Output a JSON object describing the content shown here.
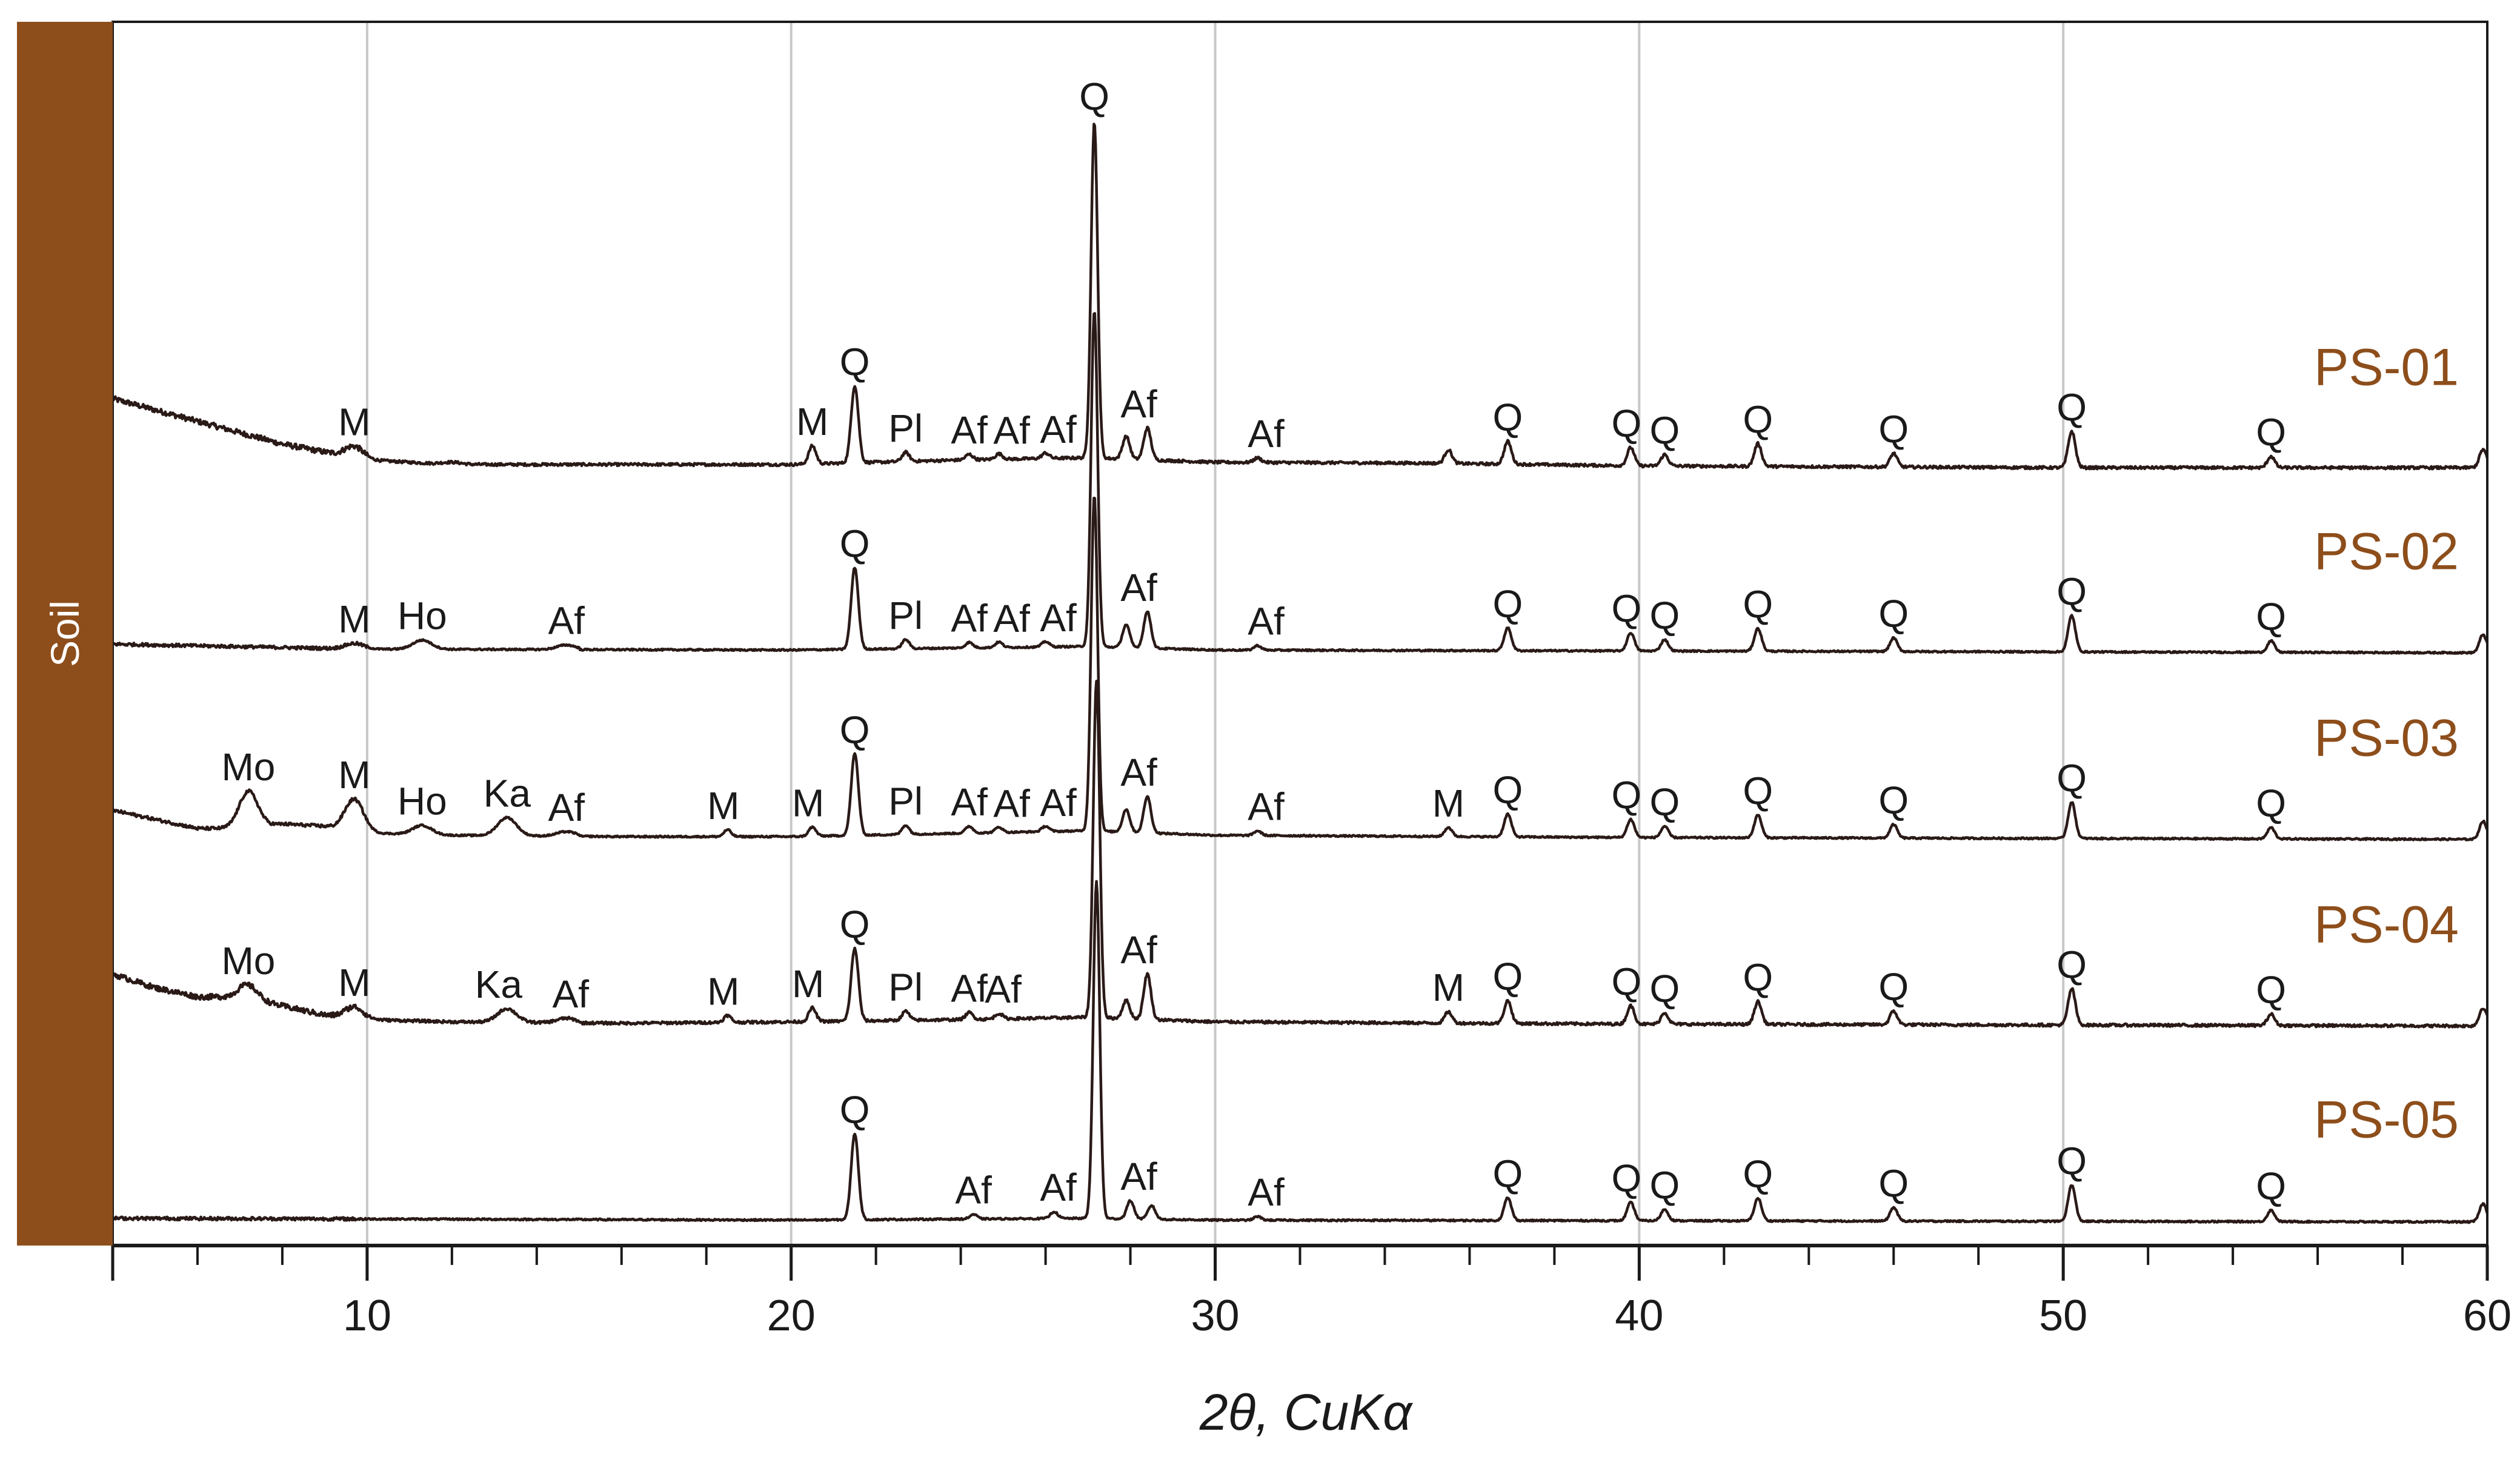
{
  "side_label": "Soil",
  "colors": {
    "side_band": "#8d4e1b",
    "sample_label": "#8d4e1b",
    "trace": "#2a1a17",
    "grid": "#c8c8c8",
    "axis": "#1a1a1a",
    "peak_label": "#1a1a1a"
  },
  "chart_data": {
    "type": "line",
    "title": "",
    "xlabel": "2θ, CuKα",
    "ylabel": "",
    "xlim": [
      4,
      60
    ],
    "x_ticks": [
      10,
      20,
      30,
      40,
      50,
      60
    ],
    "x_minor_step": 2,
    "grid": "vertical lines at major ticks",
    "y_scale": "stacked patterns, relative intensity (no axis)",
    "series": [
      {
        "name": "PS-01",
        "baseline": 0.0,
        "background": [
          [
            4,
            0.16
          ],
          [
            6,
            0.11
          ],
          [
            8,
            0.06
          ],
          [
            10,
            0.025
          ],
          [
            12,
            0.015
          ],
          [
            20,
            0.015
          ],
          [
            24,
            0.025
          ],
          [
            27,
            0.03
          ],
          [
            30,
            0.02
          ],
          [
            35,
            0.018
          ],
          [
            40,
            0.012
          ],
          [
            50,
            0.008
          ],
          [
            60,
            0.008
          ]
        ],
        "peaks": [
          [
            9.7,
            0.025
          ],
          [
            12.0,
            0.005
          ],
          [
            20.5,
            0.04
          ],
          [
            21.5,
            0.17
          ],
          [
            22.7,
            0.02
          ],
          [
            24.2,
            0.012
          ],
          [
            24.9,
            0.012
          ],
          [
            26.0,
            0.012
          ],
          [
            27.15,
            0.74
          ],
          [
            27.9,
            0.05
          ],
          [
            28.4,
            0.07
          ],
          [
            31.0,
            0.01
          ],
          [
            35.5,
            0.03
          ],
          [
            36.9,
            0.05
          ],
          [
            39.8,
            0.04
          ],
          [
            40.6,
            0.025
          ],
          [
            42.8,
            0.05
          ],
          [
            46.0,
            0.03
          ],
          [
            50.2,
            0.08
          ],
          [
            54.9,
            0.025
          ],
          [
            59.9,
            0.04
          ]
        ],
        "labels": [
          {
            "text": "M",
            "x": 9.7
          },
          {
            "text": "M",
            "x": 20.5
          },
          {
            "text": "Q",
            "x": 21.5
          },
          {
            "text": "Pl",
            "x": 22.7
          },
          {
            "text": "Af",
            "x": 24.2
          },
          {
            "text": "Af",
            "x": 25.2
          },
          {
            "text": "Af",
            "x": 26.3
          },
          {
            "text": "Q",
            "x": 27.15
          },
          {
            "text": "Af",
            "x": 28.2
          },
          {
            "text": "Af",
            "x": 31.2
          },
          {
            "text": "Q",
            "x": 36.9
          },
          {
            "text": "Q",
            "x": 39.7
          },
          {
            "text": "Q",
            "x": 40.6
          },
          {
            "text": "Q",
            "x": 42.8
          },
          {
            "text": "Q",
            "x": 46.0
          },
          {
            "text": "Q",
            "x": 50.2
          },
          {
            "text": "Q",
            "x": 54.9
          }
        ]
      },
      {
        "name": "PS-02",
        "baseline": 0.0,
        "background": [
          [
            4,
            0.025
          ],
          [
            10,
            0.014
          ],
          [
            20,
            0.012
          ],
          [
            27,
            0.02
          ],
          [
            30,
            0.012
          ],
          [
            40,
            0.01
          ],
          [
            60,
            0.006
          ]
        ],
        "peaks": [
          [
            9.7,
            0.012
          ],
          [
            11.3,
            0.02
          ],
          [
            14.7,
            0.01
          ],
          [
            21.5,
            0.18
          ],
          [
            22.7,
            0.02
          ],
          [
            24.2,
            0.012
          ],
          [
            24.9,
            0.012
          ],
          [
            26.0,
            0.012
          ],
          [
            27.15,
            0.74
          ],
          [
            27.9,
            0.05
          ],
          [
            28.4,
            0.08
          ],
          [
            31.0,
            0.01
          ],
          [
            36.9,
            0.05
          ],
          [
            39.8,
            0.04
          ],
          [
            40.6,
            0.025
          ],
          [
            42.8,
            0.05
          ],
          [
            46.0,
            0.03
          ],
          [
            50.2,
            0.08
          ],
          [
            54.9,
            0.025
          ],
          [
            59.9,
            0.04
          ]
        ],
        "labels": [
          {
            "text": "M",
            "x": 9.7
          },
          {
            "text": "Ho",
            "x": 11.3
          },
          {
            "text": "Af",
            "x": 14.7
          },
          {
            "text": "Q",
            "x": 21.5
          },
          {
            "text": "Pl",
            "x": 22.7
          },
          {
            "text": "Af",
            "x": 24.2
          },
          {
            "text": "Af",
            "x": 25.2
          },
          {
            "text": "Af",
            "x": 26.3
          },
          {
            "text": "Af",
            "x": 28.2
          },
          {
            "text": "Af",
            "x": 31.2
          },
          {
            "text": "Q",
            "x": 36.9
          },
          {
            "text": "Q",
            "x": 39.7
          },
          {
            "text": "Q",
            "x": 40.6
          },
          {
            "text": "Q",
            "x": 42.8
          },
          {
            "text": "Q",
            "x": 46.0
          },
          {
            "text": "Q",
            "x": 50.2
          },
          {
            "text": "Q",
            "x": 54.9
          }
        ]
      },
      {
        "name": "PS-03",
        "baseline": 0.0,
        "background": [
          [
            4,
            0.07
          ],
          [
            5,
            0.05
          ],
          [
            6,
            0.03
          ],
          [
            7,
            0.03
          ],
          [
            8,
            0.04
          ],
          [
            9,
            0.035
          ],
          [
            10,
            0.02
          ],
          [
            12,
            0.015
          ],
          [
            16,
            0.012
          ],
          [
            20,
            0.012
          ],
          [
            27,
            0.025
          ],
          [
            30,
            0.015
          ],
          [
            40,
            0.01
          ],
          [
            60,
            0.006
          ]
        ],
        "peaks": [
          [
            7.2,
            0.08
          ],
          [
            9.7,
            0.07
          ],
          [
            11.3,
            0.02
          ],
          [
            13.3,
            0.04
          ],
          [
            14.7,
            0.01
          ],
          [
            18.5,
            0.015
          ],
          [
            20.5,
            0.02
          ],
          [
            21.5,
            0.18
          ],
          [
            22.7,
            0.02
          ],
          [
            24.2,
            0.015
          ],
          [
            24.9,
            0.012
          ],
          [
            26.0,
            0.012
          ],
          [
            27.15,
            0.74
          ],
          [
            27.9,
            0.05
          ],
          [
            28.4,
            0.08
          ],
          [
            31.0,
            0.01
          ],
          [
            35.5,
            0.02
          ],
          [
            36.9,
            0.05
          ],
          [
            39.8,
            0.04
          ],
          [
            40.6,
            0.025
          ],
          [
            42.8,
            0.05
          ],
          [
            46.0,
            0.03
          ],
          [
            50.2,
            0.08
          ],
          [
            54.9,
            0.025
          ],
          [
            59.9,
            0.04
          ]
        ],
        "labels": [
          {
            "text": "Mo",
            "x": 7.2
          },
          {
            "text": "M",
            "x": 9.7
          },
          {
            "text": "Ho",
            "x": 11.3
          },
          {
            "text": "Ka",
            "x": 13.3
          },
          {
            "text": "Af",
            "x": 14.7
          },
          {
            "text": "M",
            "x": 18.4
          },
          {
            "text": "M",
            "x": 20.4
          },
          {
            "text": "Q",
            "x": 21.5
          },
          {
            "text": "Pl",
            "x": 22.7
          },
          {
            "text": "Af",
            "x": 24.2
          },
          {
            "text": "Af",
            "x": 25.2
          },
          {
            "text": "Af",
            "x": 26.3
          },
          {
            "text": "Af",
            "x": 28.2
          },
          {
            "text": "Af",
            "x": 31.2
          },
          {
            "text": "M",
            "x": 35.5
          },
          {
            "text": "Q",
            "x": 36.9
          },
          {
            "text": "Q",
            "x": 39.7
          },
          {
            "text": "Q",
            "x": 40.6
          },
          {
            "text": "Q",
            "x": 42.8
          },
          {
            "text": "Q",
            "x": 46.0
          },
          {
            "text": "Q",
            "x": 50.2
          },
          {
            "text": "Q",
            "x": 54.9
          }
        ]
      },
      {
        "name": "PS-04",
        "baseline": 0.0,
        "background": [
          [
            4,
            0.12
          ],
          [
            5,
            0.09
          ],
          [
            6,
            0.07
          ],
          [
            7,
            0.07
          ],
          [
            8,
            0.05
          ],
          [
            9,
            0.03
          ],
          [
            10,
            0.02
          ],
          [
            12,
            0.015
          ],
          [
            16,
            0.012
          ],
          [
            20,
            0.015
          ],
          [
            24,
            0.02
          ],
          [
            27,
            0.025
          ],
          [
            30,
            0.015
          ],
          [
            40,
            0.01
          ],
          [
            60,
            0.006
          ]
        ],
        "peaks": [
          [
            7.2,
            0.03
          ],
          [
            9.7,
            0.025
          ],
          [
            13.3,
            0.03
          ],
          [
            14.7,
            0.01
          ],
          [
            18.5,
            0.015
          ],
          [
            20.5,
            0.03
          ],
          [
            21.5,
            0.16
          ],
          [
            22.7,
            0.02
          ],
          [
            24.2,
            0.015
          ],
          [
            24.9,
            0.012
          ],
          [
            27.2,
            0.74
          ],
          [
            27.9,
            0.04
          ],
          [
            28.4,
            0.1
          ],
          [
            35.5,
            0.025
          ],
          [
            36.9,
            0.05
          ],
          [
            39.8,
            0.04
          ],
          [
            40.6,
            0.025
          ],
          [
            42.8,
            0.05
          ],
          [
            46.0,
            0.03
          ],
          [
            50.2,
            0.08
          ],
          [
            54.9,
            0.025
          ],
          [
            59.9,
            0.04
          ]
        ],
        "labels": [
          {
            "text": "Mo",
            "x": 7.2
          },
          {
            "text": "M",
            "x": 9.7
          },
          {
            "text": "Ka",
            "x": 13.1
          },
          {
            "text": "Af",
            "x": 14.8
          },
          {
            "text": "M",
            "x": 18.4
          },
          {
            "text": "M",
            "x": 20.4
          },
          {
            "text": "Q",
            "x": 21.5
          },
          {
            "text": "Pl",
            "x": 22.7
          },
          {
            "text": "Af",
            "x": 24.2
          },
          {
            "text": "Af",
            "x": 25.0
          },
          {
            "text": "Af",
            "x": 28.2
          },
          {
            "text": "M",
            "x": 35.5
          },
          {
            "text": "Q",
            "x": 36.9
          },
          {
            "text": "Q",
            "x": 39.7
          },
          {
            "text": "Q",
            "x": 40.6
          },
          {
            "text": "Q",
            "x": 42.8
          },
          {
            "text": "Q",
            "x": 46.0
          },
          {
            "text": "Q",
            "x": 50.2
          },
          {
            "text": "Q",
            "x": 54.9
          }
        ]
      },
      {
        "name": "PS-05",
        "baseline": 0.0,
        "background": [
          [
            4,
            0.012
          ],
          [
            20,
            0.008
          ],
          [
            27,
            0.012
          ],
          [
            30,
            0.008
          ],
          [
            60,
            0.004
          ]
        ],
        "peaks": [
          [
            21.5,
            0.19
          ],
          [
            24.3,
            0.01
          ],
          [
            26.2,
            0.015
          ],
          [
            27.2,
            0.74
          ],
          [
            28.0,
            0.04
          ],
          [
            28.5,
            0.03
          ],
          [
            31.0,
            0.008
          ],
          [
            36.9,
            0.05
          ],
          [
            39.8,
            0.04
          ],
          [
            40.6,
            0.025
          ],
          [
            42.8,
            0.05
          ],
          [
            46.0,
            0.03
          ],
          [
            50.2,
            0.08
          ],
          [
            54.9,
            0.025
          ],
          [
            59.9,
            0.04
          ]
        ],
        "labels": [
          {
            "text": "Q",
            "x": 21.5
          },
          {
            "text": "Af",
            "x": 24.3
          },
          {
            "text": "Af",
            "x": 26.3
          },
          {
            "text": "Af",
            "x": 28.2
          },
          {
            "text": "Af",
            "x": 31.2
          },
          {
            "text": "Q",
            "x": 36.9
          },
          {
            "text": "Q",
            "x": 39.7
          },
          {
            "text": "Q",
            "x": 40.6
          },
          {
            "text": "Q",
            "x": 42.8
          },
          {
            "text": "Q",
            "x": 46.0
          },
          {
            "text": "Q",
            "x": 50.2
          },
          {
            "text": "Q",
            "x": 54.9
          }
        ]
      }
    ]
  }
}
